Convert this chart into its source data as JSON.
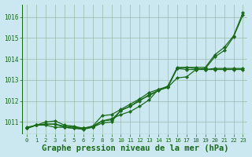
{
  "background_color": "#cbe8f0",
  "plot_bg_color": "#cbe8f0",
  "grid_color": "#99bbaa",
  "line_color": "#1a6b1a",
  "title": "Graphe pression niveau de la mer (hPa)",
  "title_fontsize": 7.5,
  "xlim": [
    -0.5,
    23.5
  ],
  "ylim": [
    1010.4,
    1016.6
  ],
  "yticks": [
    1011,
    1012,
    1013,
    1014,
    1015,
    1016
  ],
  "xticks": [
    0,
    1,
    2,
    3,
    4,
    5,
    6,
    7,
    8,
    9,
    10,
    11,
    12,
    13,
    14,
    15,
    16,
    17,
    18,
    19,
    20,
    21,
    22,
    23
  ],
  "series": [
    [
      1010.7,
      1010.85,
      1010.9,
      1010.9,
      1010.75,
      1010.7,
      1010.65,
      1010.75,
      1011.05,
      1011.1,
      1011.55,
      1011.75,
      1012.05,
      1012.25,
      1012.5,
      1012.65,
      1013.55,
      1013.5,
      1013.5,
      1013.55,
      1014.1,
      1014.4,
      1015.05,
      1016.1
    ],
    [
      1010.7,
      1010.85,
      1011.0,
      1011.05,
      1010.85,
      1010.8,
      1010.7,
      1010.8,
      1011.05,
      1011.15,
      1011.35,
      1011.5,
      1011.75,
      1012.05,
      1012.55,
      1012.65,
      1013.1,
      1013.15,
      1013.5,
      1013.5,
      1013.5,
      1013.5,
      1013.5,
      1013.5
    ],
    [
      1010.75,
      1010.85,
      1010.85,
      1010.75,
      1010.75,
      1010.7,
      1010.7,
      1010.75,
      1010.95,
      1011.0,
      1011.55,
      1011.75,
      1012.0,
      1012.3,
      1012.5,
      1012.7,
      1013.55,
      1013.6,
      1013.55,
      1013.5,
      1013.55,
      1013.55,
      1013.55,
      1013.55
    ],
    [
      1010.7,
      1010.85,
      1010.9,
      1010.9,
      1010.8,
      1010.75,
      1010.7,
      1010.8,
      1011.3,
      1011.35,
      1011.6,
      1011.85,
      1012.1,
      1012.4,
      1012.55,
      1012.7,
      1013.6,
      1013.6,
      1013.6,
      1013.6,
      1014.2,
      1014.55,
      1015.1,
      1016.2
    ]
  ]
}
